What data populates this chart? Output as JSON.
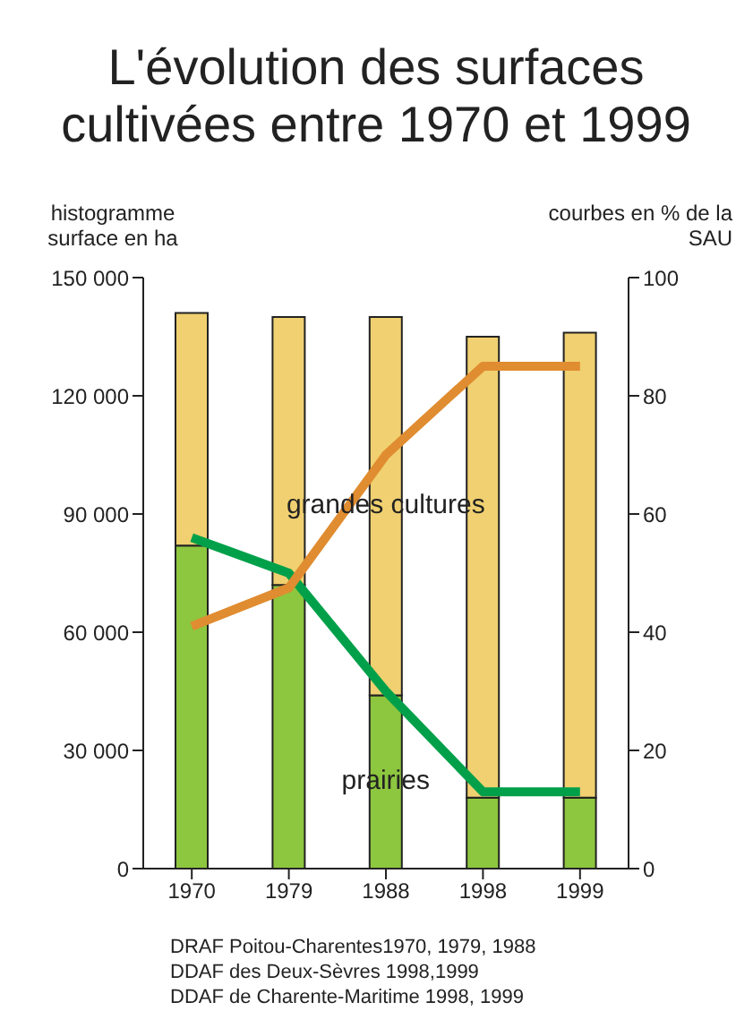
{
  "chart_data": {
    "type": "bar",
    "title": "L'évolution des surfaces cultivées entre 1970 et 1999",
    "ylabel": "histogramme surface en ha",
    "y2label": "courbes en % de la SAU",
    "categories": [
      "1970",
      "1979",
      "1988",
      "1998",
      "1999"
    ],
    "stacked": true,
    "series": [
      {
        "name": "prairies",
        "color": "#8dc63f",
        "values": [
          82000,
          72000,
          44000,
          18000,
          18000
        ]
      },
      {
        "name": "grandes cultures",
        "color": "#f0d070",
        "values": [
          59000,
          68000,
          96000,
          117000,
          118000
        ]
      },
      {
        "type": "line",
        "axis": "y2",
        "color": "#00a04a",
        "values": [
          56,
          50,
          30,
          13,
          13
        ]
      },
      {
        "type": "line",
        "axis": "y2",
        "color": "#e08c30",
        "values": [
          41,
          47.5,
          70,
          85,
          85
        ]
      }
    ],
    "ylim": [
      0,
      150000
    ],
    "yticks": [
      0,
      {
        "value": 30000,
        "label": "30 000"
      },
      {
        "value": 60000,
        "label": "60 000"
      },
      {
        "value": 90000,
        "label": "90 000"
      },
      {
        "value": 120000,
        "label": "120 000"
      },
      {
        "value": 150000,
        "label": "150 000"
      }
    ],
    "y2lim": [
      0,
      100
    ],
    "y2ticks": [
      0,
      20,
      40,
      60,
      80,
      100
    ],
    "grid": false,
    "legend": false,
    "marker": "none",
    "line_style": "solid",
    "annotations": [
      "DRAF Poitou-Charentes1970, 1979, 1988",
      "DDAF des Deux-Sèvres 1998,1999",
      "DDAF de Charente-Maritime 1998, 1999"
    ]
  }
}
